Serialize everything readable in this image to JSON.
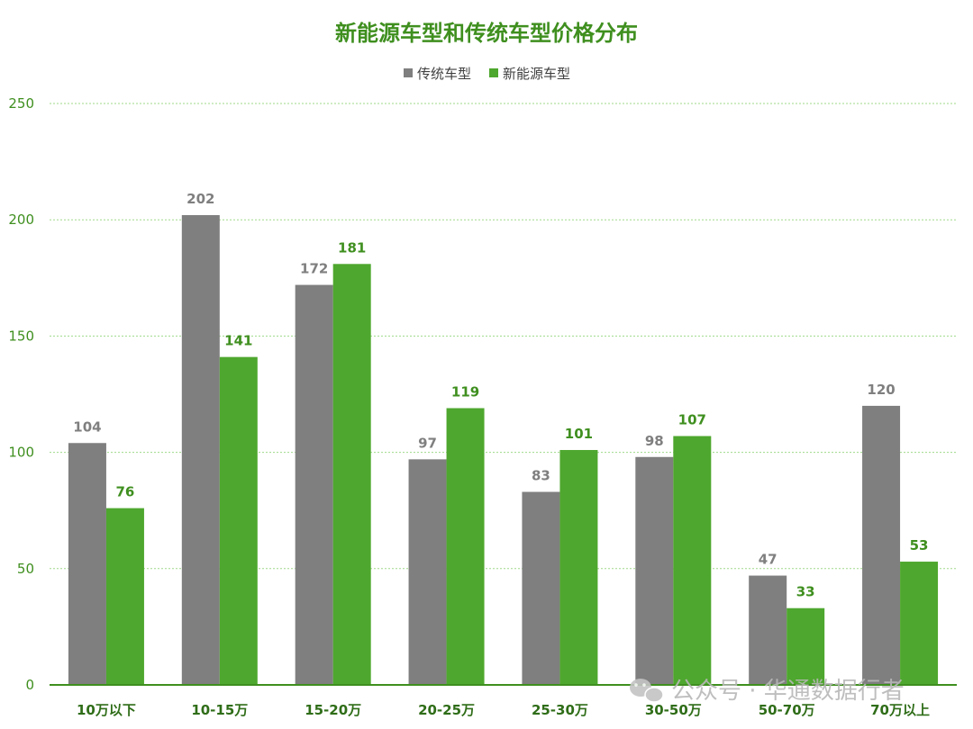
{
  "chart_data": {
    "type": "bar",
    "title": "新能源车型和传统车型价格分布",
    "categories": [
      "10万以下",
      "10-15万",
      "15-20万",
      "20-25万",
      "25-30万",
      "30-50万",
      "50-70万",
      "70万以上"
    ],
    "series": [
      {
        "name": "传统车型",
        "values": [
          104,
          202,
          172,
          97,
          83,
          98,
          47,
          120
        ],
        "color": "#7f7f7f"
      },
      {
        "name": "新能源车型",
        "values": [
          76,
          141,
          181,
          119,
          101,
          107,
          33,
          53
        ],
        "color": "#4ea72e"
      }
    ],
    "ylim": [
      0,
      250
    ],
    "yticks": [
      0,
      50,
      100,
      150,
      200,
      250
    ],
    "grid": true,
    "legend_position": "top-center",
    "data_labels": true
  },
  "watermark": {
    "text": "公众号 · 华通数据行者",
    "icon": "wechat-icon"
  }
}
